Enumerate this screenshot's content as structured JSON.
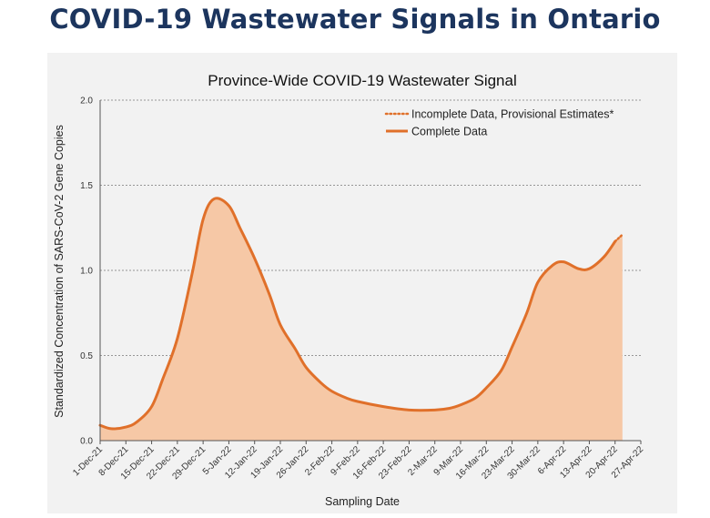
{
  "page": {
    "title": "COVID-19 Wastewater Signals in Ontario"
  },
  "chart_data": {
    "type": "area",
    "title": "Province-Wide COVID-19 Wastewater Signal",
    "xlabel": "Sampling Date",
    "ylabel": "Standardized Concentration of SARS-CoV-2 Gene Copies",
    "x_ticks": [
      "1-Dec-21",
      "8-Dec-21",
      "15-Dec-21",
      "22-Dec-21",
      "29-Dec-21",
      "5-Jan-22",
      "12-Jan-22",
      "19-Jan-22",
      "26-Jan-22",
      "2-Feb-22",
      "9-Feb-22",
      "16-Feb-22",
      "23-Feb-22",
      "2-Mar-22",
      "9-Mar-22",
      "16-Mar-22",
      "23-Mar-22",
      "30-Mar-22",
      "6-Apr-22",
      "13-Apr-22",
      "20-Apr-22",
      "27-Apr-22"
    ],
    "y_ticks": [
      "0.0",
      "0.5",
      "1.0",
      "1.5",
      "2.0"
    ],
    "ylim": [
      0,
      2.0
    ],
    "grid": true,
    "legend_position": "top-right",
    "colors": {
      "line": "#e0702a",
      "fill": "#f6c8a6",
      "title": "#1c355e",
      "panel": "#f2f2f2"
    },
    "series": [
      {
        "name": "Complete Data",
        "style": "solid",
        "x": [
          "1-Dec-21",
          "4-Dec-21",
          "8-Dec-21",
          "11-Dec-21",
          "15-Dec-21",
          "18-Dec-21",
          "22-Dec-21",
          "26-Dec-21",
          "29-Dec-21",
          "1-Jan-22",
          "5-Jan-22",
          "8-Jan-22",
          "12-Jan-22",
          "16-Jan-22",
          "19-Jan-22",
          "23-Jan-22",
          "26-Jan-22",
          "30-Jan-22",
          "2-Feb-22",
          "6-Feb-22",
          "9-Feb-22",
          "16-Feb-22",
          "23-Feb-22",
          "2-Mar-22",
          "6-Mar-22",
          "9-Mar-22",
          "13-Mar-22",
          "16-Mar-22",
          "20-Mar-22",
          "23-Mar-22",
          "27-Mar-22",
          "30-Mar-22",
          "3-Apr-22",
          "6-Apr-22",
          "10-Apr-22",
          "13-Apr-22",
          "17-Apr-22",
          "20-Apr-22"
        ],
        "y": [
          0.09,
          0.07,
          0.08,
          0.11,
          0.2,
          0.36,
          0.6,
          0.98,
          1.3,
          1.42,
          1.38,
          1.25,
          1.07,
          0.86,
          0.68,
          0.54,
          0.43,
          0.34,
          0.29,
          0.25,
          0.23,
          0.2,
          0.18,
          0.18,
          0.19,
          0.21,
          0.25,
          0.31,
          0.41,
          0.55,
          0.75,
          0.93,
          1.03,
          1.05,
          1.01,
          1.01,
          1.08,
          1.17
        ]
      },
      {
        "name": "Incomplete Data, Provisional Estimates*",
        "style": "dotted",
        "x": [
          "20-Apr-22",
          "22-Apr-22"
        ],
        "y": [
          1.17,
          1.21
        ]
      }
    ]
  }
}
